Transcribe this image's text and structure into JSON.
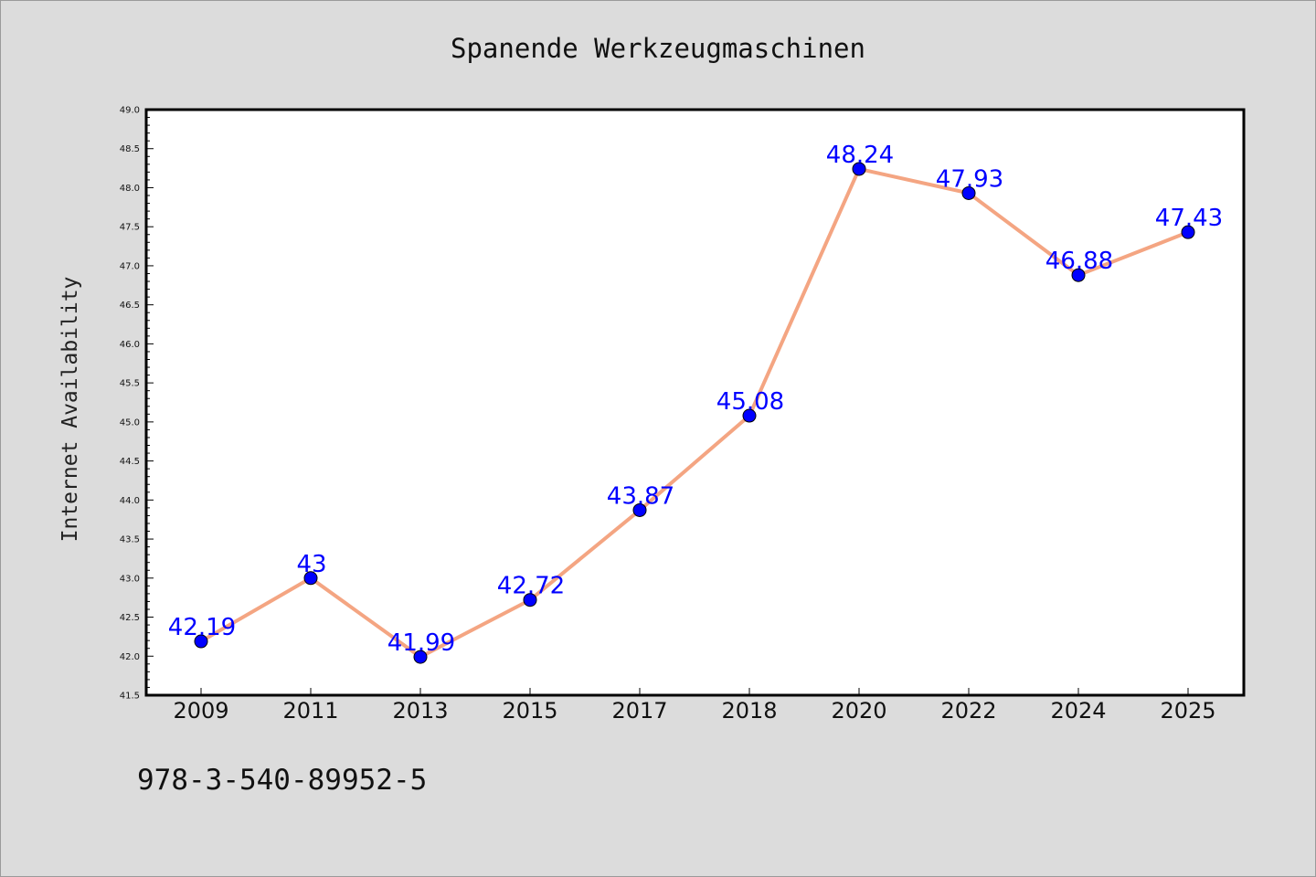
{
  "chart_data": {
    "type": "line",
    "title": "Spanende Werkzeugmaschinen",
    "ylabel": "Internet Availability",
    "xlabel": "",
    "categories": [
      "2009",
      "2011",
      "2013",
      "2015",
      "2017",
      "2018",
      "2020",
      "2022",
      "2024",
      "2025"
    ],
    "series": [
      {
        "values": [
          42.19,
          43,
          41.99,
          42.72,
          43.87,
          45.08,
          48.24,
          47.93,
          46.88,
          47.43
        ]
      }
    ],
    "data_labels": [
      "42.19",
      "43",
      "41.99",
      "42.72",
      "43.87",
      "45.08",
      "48.24",
      "47.93",
      "46.88",
      "47.43"
    ],
    "ylim": [
      41.5,
      49.0
    ],
    "yticks": [
      "41.5",
      "42.0",
      "42.5",
      "43.0",
      "43.5",
      "44.0",
      "44.5",
      "45.0",
      "45.5",
      "46.0",
      "46.5",
      "47.0",
      "47.5",
      "48.0",
      "48.5",
      "49.0"
    ],
    "grid": false,
    "legend": "none",
    "colors": {
      "line": "#f4a582",
      "marker": "#0000ff",
      "data_label": "#0000ff",
      "plot_background": "#ffffff",
      "figure_background": "#dcdcdc"
    }
  },
  "footer": {
    "text": "978-3-540-89952-5"
  }
}
